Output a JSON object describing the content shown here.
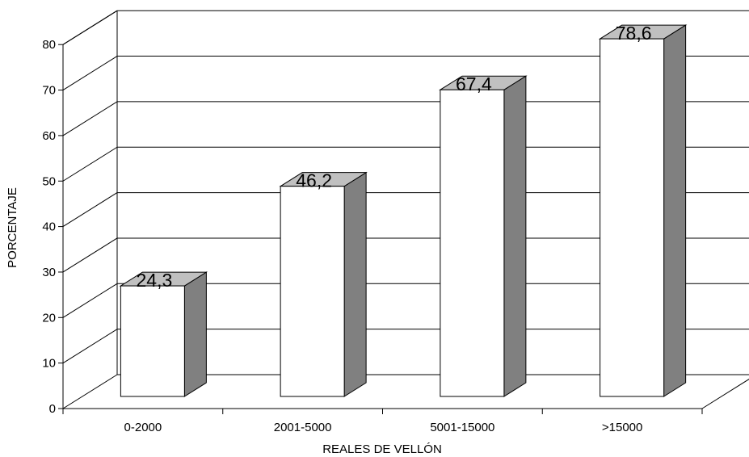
{
  "chart_data": {
    "type": "bar",
    "style": "3d",
    "categories": [
      "0-2000",
      "2001-5000",
      "5001-15000",
      ">15000"
    ],
    "values": [
      24.3,
      46.2,
      67.4,
      78.6
    ],
    "data_labels": [
      "24,3",
      "46,2",
      "67,4",
      "78,6"
    ],
    "title": "",
    "xlabel": "REALES DE VELLÓN",
    "ylabel": "PORCENTAJE",
    "ylim": [
      0,
      80
    ],
    "yticks": [
      "0",
      "10",
      "20",
      "30",
      "40",
      "50",
      "60",
      "70",
      "80"
    ],
    "grid": true,
    "legend": "none",
    "colors": {
      "bar_front": "#ffffff",
      "bar_side": "#808080",
      "bar_top": "#c0c0c0",
      "outline": "#000000",
      "gridline": "#000000"
    }
  }
}
